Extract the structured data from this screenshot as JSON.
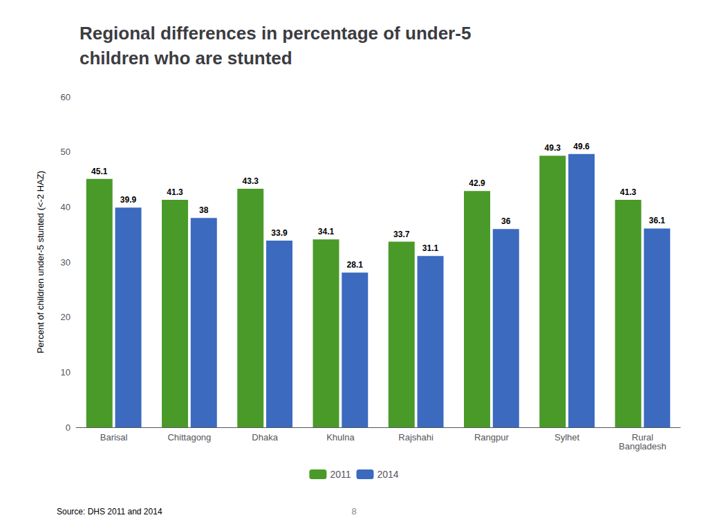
{
  "chart_data": {
    "type": "bar",
    "title": "Regional differences in percentage of under-5\nchildren who are stunted",
    "y_label": "Percent of children under-5 stunted (<-2 HAZ)",
    "categories": [
      "Barisal",
      "Chittagong",
      "Dhaka",
      "Khulna",
      "Rajshahi",
      "Rangpur",
      "Sylhet",
      "Rural\nBangladesh"
    ],
    "series": [
      {
        "name": "2011",
        "color": "#4a9a2a",
        "values": [
          45.1,
          41.3,
          43.3,
          34.1,
          33.7,
          42.9,
          49.3,
          41.3
        ]
      },
      {
        "name": "2014",
        "color": "#3b6abf",
        "values": [
          39.9,
          38.0,
          33.9,
          28.1,
          31.1,
          36.0,
          49.6,
          36.1
        ]
      }
    ],
    "ylim": [
      0,
      60
    ],
    "yticks": [
      0,
      10,
      20,
      30,
      40,
      50,
      60
    ],
    "grid": false,
    "legend": "bottom",
    "data_labels": true,
    "annotations": [
      "Source: DHS 2011 and 2014",
      "8"
    ]
  }
}
